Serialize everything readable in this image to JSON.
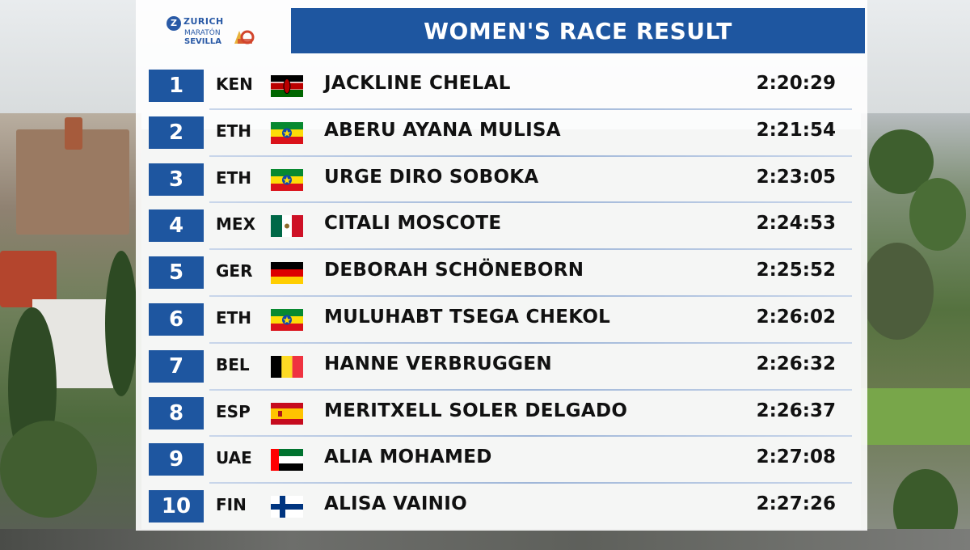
{
  "logo": {
    "brand": "ZURICH",
    "line2": "MARATÓN",
    "line3": "SEVILLA",
    "icon": "zurich-z-icon"
  },
  "title": "WOMEN'S RACE RESULT",
  "colors": {
    "accent_blue": "#1e56a0",
    "panel_bg": "#ffffff",
    "text": "#111111"
  },
  "results": [
    {
      "position": "1",
      "country": "KEN",
      "flag": "kenya-flag-icon",
      "name": "JACKLINE CHELAL",
      "time": "2:20:29"
    },
    {
      "position": "2",
      "country": "ETH",
      "flag": "ethiopia-flag-icon",
      "name": "ABERU AYANA MULISA",
      "time": "2:21:54"
    },
    {
      "position": "3",
      "country": "ETH",
      "flag": "ethiopia-flag-icon",
      "name": "URGE DIRO SOBOKA",
      "time": "2:23:05"
    },
    {
      "position": "4",
      "country": "MEX",
      "flag": "mexico-flag-icon",
      "name": "CITALI MOSCOTE",
      "time": "2:24:53"
    },
    {
      "position": "5",
      "country": "GER",
      "flag": "germany-flag-icon",
      "name": "DEBORAH SCHÖNEBORN",
      "time": "2:25:52"
    },
    {
      "position": "6",
      "country": "ETH",
      "flag": "ethiopia-flag-icon",
      "name": "MULUHABT TSEGA CHEKOL",
      "time": "2:26:02"
    },
    {
      "position": "7",
      "country": "BEL",
      "flag": "belgium-flag-icon",
      "name": "HANNE VERBRUGGEN",
      "time": "2:26:32"
    },
    {
      "position": "8",
      "country": "ESP",
      "flag": "spain-flag-icon",
      "name": "MERITXELL SOLER DELGADO",
      "time": "2:26:37"
    },
    {
      "position": "9",
      "country": "UAE",
      "flag": "uae-flag-icon",
      "name": "ALIA MOHAMED",
      "time": "2:27:08"
    },
    {
      "position": "10",
      "country": "FIN",
      "flag": "finland-flag-icon",
      "name": "ALISA VAINIO",
      "time": "2:27:26"
    }
  ]
}
